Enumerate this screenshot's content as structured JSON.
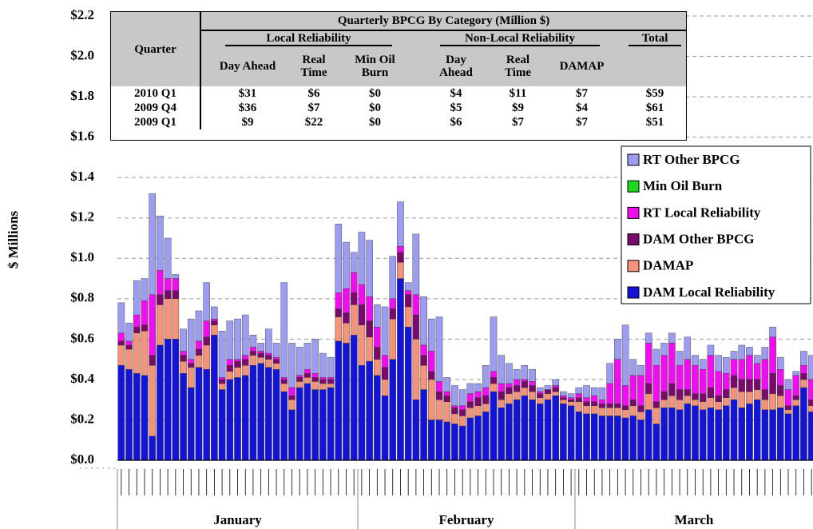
{
  "chart_data": {
    "type": "stacked-bar",
    "y_label": "$ Millions",
    "ylim": [
      0,
      2.2
    ],
    "yticks": [
      {
        "value": 0,
        "label": "$0.0"
      },
      {
        "value": 0.2,
        "label": "$0.2"
      },
      {
        "value": 0.4,
        "label": "$0.4"
      },
      {
        "value": 0.6,
        "label": "$0.6"
      },
      {
        "value": 0.8,
        "label": "$0.8"
      },
      {
        "value": 1.0,
        "label": "$1.0"
      },
      {
        "value": 1.2,
        "label": "$1.2"
      },
      {
        "value": 1.4,
        "label": "$1.4"
      },
      {
        "value": 1.6,
        "label": "$1.6"
      },
      {
        "value": 1.8,
        "label": "$1.8"
      },
      {
        "value": 2.0,
        "label": "$2.0"
      },
      {
        "value": 2.2,
        "label": "$2.2"
      }
    ],
    "grid": true,
    "legend_position": "right",
    "x_groups": [
      {
        "label": "January",
        "count": 31
      },
      {
        "label": "February",
        "count": 28
      },
      {
        "label": "March",
        "count": 31
      }
    ],
    "categories": [
      null,
      null,
      null,
      null,
      null,
      null,
      null,
      null,
      null,
      null,
      null,
      null,
      null,
      null,
      null,
      null,
      null,
      null,
      null,
      null,
      null,
      null,
      null,
      null,
      null,
      null,
      null,
      null,
      null,
      null,
      null,
      null,
      null,
      null,
      null,
      null,
      null,
      null,
      null,
      null,
      null,
      null,
      null,
      null,
      null,
      null,
      null,
      null,
      null,
      null,
      null,
      null,
      null,
      null,
      null,
      null,
      null,
      null,
      null,
      null,
      null,
      null,
      null,
      null,
      null,
      null,
      null,
      null,
      null,
      null,
      null,
      null,
      null,
      null,
      null,
      null,
      null,
      null,
      null,
      null,
      null,
      null,
      null,
      null,
      null,
      null,
      null,
      null,
      null,
      null
    ],
    "series": [
      {
        "name": "DAM Local Reliability",
        "color": "#1414d8",
        "values": [
          0.47,
          0.45,
          0.43,
          0.42,
          0.12,
          0.57,
          0.6,
          0.6,
          0.43,
          0.36,
          0.46,
          0.45,
          0.62,
          0.35,
          0.4,
          0.41,
          0.42,
          0.47,
          0.48,
          0.46,
          0.45,
          0.34,
          0.25,
          0.36,
          0.38,
          0.35,
          0.35,
          0.36,
          0.59,
          0.58,
          0.62,
          0.47,
          0.49,
          0.42,
          0.32,
          0.5,
          0.9,
          0.66,
          0.3,
          0.35,
          0.2,
          0.2,
          0.19,
          0.18,
          0.17,
          0.21,
          0.22,
          0.24,
          0.34,
          0.26,
          0.28,
          0.3,
          0.32,
          0.3,
          0.28,
          0.3,
          0.32,
          0.28,
          0.27,
          0.24,
          0.23,
          0.23,
          0.22,
          0.22,
          0.22,
          0.21,
          0.22,
          0.2,
          0.25,
          0.18,
          0.26,
          0.26,
          0.25,
          0.28,
          0.27,
          0.25,
          0.26,
          0.25,
          0.27,
          0.3,
          0.26,
          0.28,
          0.3,
          0.25,
          0.25,
          0.26,
          0.23,
          0.27,
          0.36,
          0.24
        ]
      },
      {
        "name": "DAMAP",
        "color": "#f4937a",
        "values": [
          0.1,
          0.1,
          0.2,
          0.22,
          0.35,
          0.2,
          0.2,
          0.2,
          0.06,
          0.1,
          0.06,
          0.12,
          0.05,
          0.03,
          0.04,
          0.05,
          0.05,
          0.05,
          0.03,
          0.04,
          0.03,
          0.04,
          0.05,
          0.03,
          0.03,
          0.04,
          0.03,
          0.02,
          0.12,
          0.1,
          0.15,
          0.2,
          0.12,
          0.08,
          0.08,
          0.2,
          0.08,
          0.1,
          0.3,
          0.12,
          0.2,
          0.1,
          0.1,
          0.05,
          0.05,
          0.05,
          0.05,
          0.04,
          0.04,
          0.04,
          0.05,
          0.04,
          0.04,
          0.04,
          0.03,
          0.03,
          0.02,
          0.02,
          0.02,
          0.05,
          0.04,
          0.04,
          0.04,
          0.04,
          0.04,
          0.04,
          0.05,
          0.04,
          0.08,
          0.08,
          0.04,
          0.06,
          0.05,
          0.04,
          0.03,
          0.04,
          0.05,
          0.04,
          0.04,
          0.06,
          0.08,
          0.06,
          0.05,
          0.05,
          0.08,
          0.06,
          0.02,
          0.03,
          0.04,
          0.03
        ]
      },
      {
        "name": "DAM Other BPCG",
        "color": "#7a0a6a",
        "values": [
          0.02,
          0.02,
          0.03,
          0.03,
          0.05,
          0.05,
          0.04,
          0.04,
          0.03,
          0.02,
          0.03,
          0.04,
          0.02,
          0.02,
          0.03,
          0.03,
          0.03,
          0.02,
          0.02,
          0.02,
          0.02,
          0.02,
          0.02,
          0.02,
          0.02,
          0.02,
          0.02,
          0.02,
          0.04,
          0.05,
          0.06,
          0.1,
          0.08,
          0.06,
          0.06,
          0.05,
          0.05,
          0.06,
          0.12,
          0.05,
          0.04,
          0.04,
          0.03,
          0.03,
          0.03,
          0.03,
          0.04,
          0.04,
          0.03,
          0.04,
          0.03,
          0.03,
          0.03,
          0.03,
          0.02,
          0.02,
          0.02,
          0.01,
          0.01,
          0.02,
          0.02,
          0.02,
          0.02,
          0.02,
          0.02,
          0.02,
          0.03,
          0.03,
          0.05,
          0.03,
          0.04,
          0.06,
          0.05,
          0.03,
          0.03,
          0.04,
          0.05,
          0.03,
          0.04,
          0.06,
          0.06,
          0.06,
          0.05,
          0.05,
          0.1,
          0.05,
          0.02,
          0.02,
          0.03,
          0.03
        ]
      },
      {
        "name": "RT Local Reliability",
        "color": "#f00ef0",
        "values": [
          0.04,
          0.02,
          0.06,
          0.12,
          0.3,
          0.12,
          0.06,
          0.06,
          0.02,
          0.02,
          0.04,
          0.08,
          0.01,
          0.01,
          0.03,
          0.01,
          0.02,
          0.02,
          0.01,
          0.01,
          0.01,
          0.01,
          0.04,
          0.01,
          0.02,
          0.02,
          0.01,
          0.01,
          0.08,
          0.12,
          0.1,
          0.1,
          0.12,
          0.1,
          0.06,
          0.05,
          0.03,
          0.02,
          0.1,
          0.05,
          0.1,
          0.05,
          0.02,
          0.01,
          0.02,
          0.04,
          0.03,
          0.04,
          0.03,
          0.04,
          0.02,
          0.03,
          0.01,
          0.02,
          0.01,
          0.0,
          0.01,
          0.01,
          0.01,
          0.02,
          0.02,
          0.03,
          0.02,
          0.1,
          0.22,
          0.1,
          0.12,
          0.15,
          0.2,
          0.18,
          0.18,
          0.2,
          0.12,
          0.15,
          0.14,
          0.12,
          0.16,
          0.12,
          0.08,
          0.08,
          0.1,
          0.12,
          0.08,
          0.15,
          0.18,
          0.08,
          0.08,
          0.1,
          0.04,
          0.1
        ]
      },
      {
        "name": "Min Oil Burn",
        "color": "#1ed81e",
        "values": [
          0,
          0,
          0,
          0,
          0,
          0,
          0,
          0,
          0,
          0,
          0,
          0,
          0,
          0,
          0,
          0,
          0,
          0,
          0,
          0,
          0,
          0,
          0,
          0,
          0,
          0,
          0,
          0,
          0,
          0,
          0,
          0,
          0,
          0,
          0,
          0,
          0,
          0,
          0,
          0,
          0,
          0,
          0,
          0,
          0,
          0,
          0,
          0,
          0,
          0,
          0,
          0,
          0,
          0,
          0,
          0,
          0,
          0,
          0,
          0,
          0,
          0,
          0,
          0,
          0,
          0,
          0,
          0,
          0,
          0,
          0,
          0,
          0,
          0,
          0,
          0,
          0,
          0,
          0,
          0,
          0,
          0,
          0,
          0,
          0,
          0,
          0,
          0,
          0,
          0
        ]
      },
      {
        "name": "RT Other BPCG",
        "color": "#9c9cf0",
        "values": [
          0.15,
          0.09,
          0.17,
          0.11,
          0.5,
          0.27,
          0.2,
          0.02,
          0.11,
          0.2,
          0.15,
          0.19,
          0.06,
          0.23,
          0.19,
          0.2,
          0.2,
          0.06,
          0.04,
          0.12,
          0.07,
          0.47,
          0.22,
          0.14,
          0.13,
          0.17,
          0.12,
          0.1,
          0.34,
          0.23,
          0.1,
          0.26,
          0.28,
          0.11,
          0.24,
          0.21,
          0.22,
          0.04,
          0.3,
          0.24,
          0.16,
          0.32,
          0.07,
          0.1,
          0.08,
          0.05,
          0.04,
          0.11,
          0.27,
          0.14,
          0.1,
          0.05,
          0.07,
          0.06,
          0.02,
          0.02,
          0.03,
          0.02,
          0.02,
          0.03,
          0.06,
          0.04,
          0.06,
          0.1,
          0.1,
          0.3,
          0.08,
          0.05,
          0.05,
          0.08,
          0.06,
          0.05,
          0.07,
          0.11,
          0.05,
          0.05,
          0.05,
          0.08,
          0.08,
          0.04,
          0.07,
          0.04,
          0.04,
          0.06,
          0.05,
          0.06,
          0.05,
          0.02,
          0.07,
          0.12
        ]
      }
    ],
    "summary_table": {
      "title": "Quarterly BPCG By Category (Million $)",
      "row_header": "Quarter",
      "groups": [
        "Local Reliability",
        "Non-Local Reliability",
        "Total"
      ],
      "columns": [
        "Day Ahead",
        "Real Time",
        "Min Oil Burn",
        "Day Ahead",
        "Real Time",
        "DAMAP"
      ],
      "rows": [
        [
          "2010 Q1",
          "$31",
          "$6",
          "$0",
          "$4",
          "$11",
          "$7",
          "$59"
        ],
        [
          "2009 Q4",
          "$36",
          "$7",
          "$0",
          "$5",
          "$9",
          "$4",
          "$61"
        ],
        [
          "2009 Q1",
          "$9",
          "$22",
          "$0",
          "$6",
          "$7",
          "$7",
          "$51"
        ]
      ]
    }
  }
}
